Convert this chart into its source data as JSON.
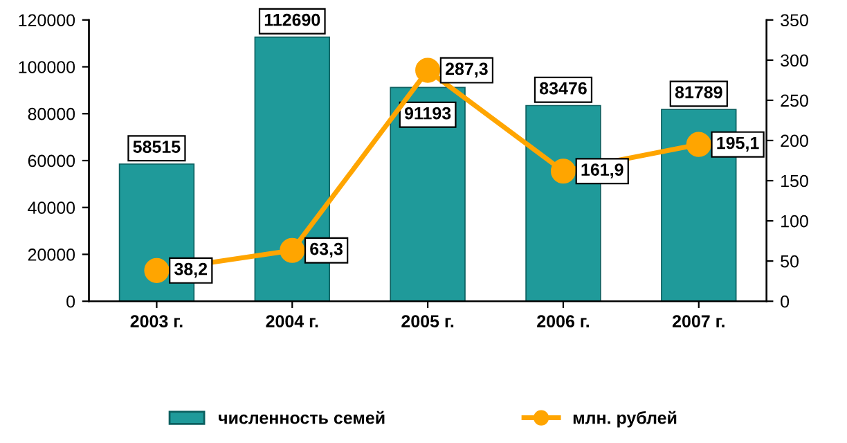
{
  "chart_data": {
    "type": "bar",
    "categories": [
      "2003 г.",
      "2004 г.",
      "2005 г.",
      "2006 г.",
      "2007 г."
    ],
    "series": [
      {
        "name": "численность семей",
        "color": "#1f9a9a",
        "values": [
          58515,
          112690,
          91193,
          83476,
          81789
        ],
        "value_labels": [
          "58515",
          "112690",
          "91193",
          "83476",
          "81789"
        ]
      },
      {
        "name": "млн. рублей",
        "type": "line",
        "axis": "y2",
        "color": "#ffa500",
        "marker": "circle",
        "line_style": "solid",
        "values": [
          38.2,
          63.3,
          287.3,
          161.9,
          195.1
        ],
        "value_labels": [
          "38,2",
          "63,3",
          "287,3",
          "161,9",
          "195,1"
        ]
      }
    ],
    "ylim": [
      0,
      120000
    ],
    "yticks": [
      0,
      20000,
      40000,
      60000,
      80000,
      100000,
      120000
    ],
    "y2lim": [
      0,
      350
    ],
    "y2ticks": [
      0,
      50,
      100,
      150,
      200,
      250,
      300,
      350
    ],
    "grid": false,
    "legend": "bottom"
  }
}
